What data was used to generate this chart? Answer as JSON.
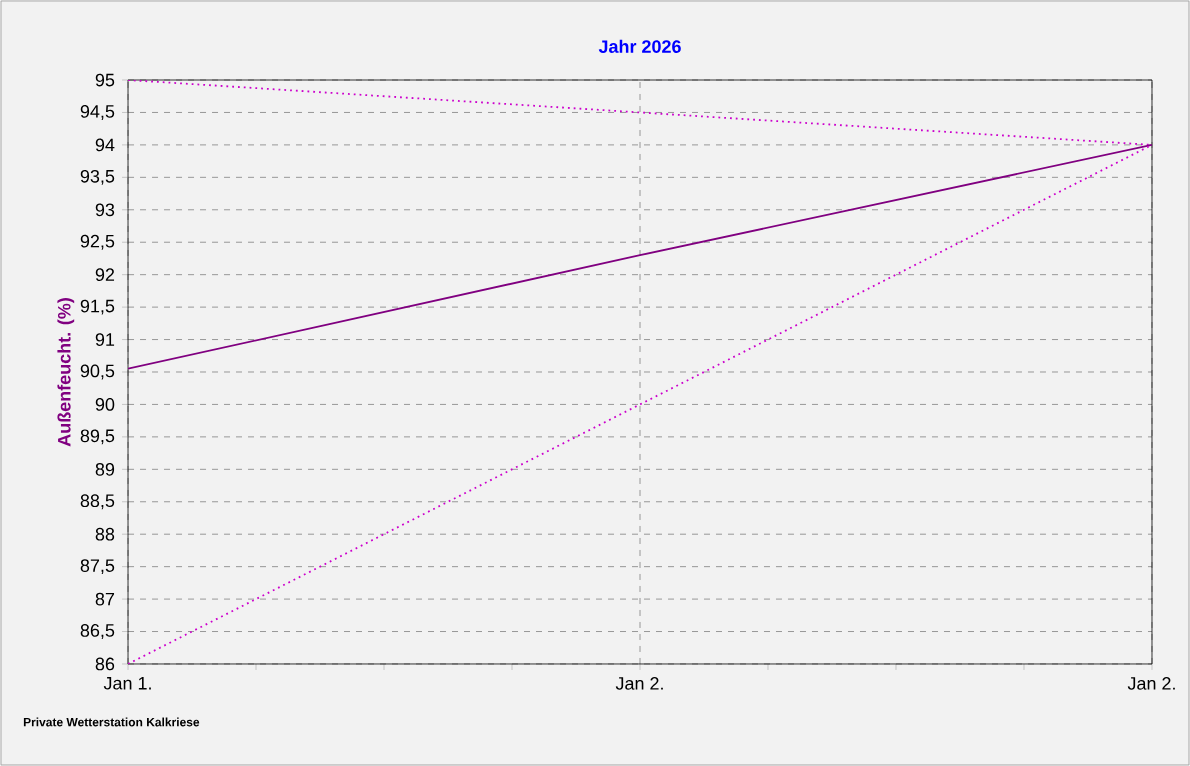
{
  "chart_data": {
    "type": "line",
    "title": "Jahr 2026",
    "ylabel": "Außenfeucht. (%)",
    "categories": [
      "Jan 1.",
      "Jan 2.",
      "Jan 2."
    ],
    "series": [
      {
        "color": "#cc00cc",
        "line_style": "dotted",
        "values": [
          95,
          94.5,
          94
        ]
      },
      {
        "color": "#800080",
        "line_style": "solid",
        "values": [
          90.55,
          92.3,
          94
        ]
      },
      {
        "color": "#cc00cc",
        "line_style": "dotted",
        "values": [
          86,
          90,
          94
        ]
      }
    ],
    "ylim": [
      86,
      95
    ],
    "yticks": [
      86,
      {
        "value": 86.5,
        "label": "86,5"
      },
      87,
      {
        "value": 87.5,
        "label": "87,5"
      },
      88,
      {
        "value": 88.5,
        "label": "88,5"
      },
      89,
      {
        "value": 89.5,
        "label": "89,5"
      },
      90,
      {
        "value": 90.5,
        "label": "90,5"
      },
      91,
      {
        "value": 91.5,
        "label": "91,5"
      },
      92,
      {
        "value": 92.5,
        "label": "92,5"
      },
      93,
      {
        "value": 93.5,
        "label": "93,5"
      },
      94,
      {
        "value": 94.5,
        "label": "94,5"
      },
      95
    ],
    "grid": true,
    "marker": "none",
    "annotations": [
      "Private Wetterstation Kalkriese"
    ]
  }
}
